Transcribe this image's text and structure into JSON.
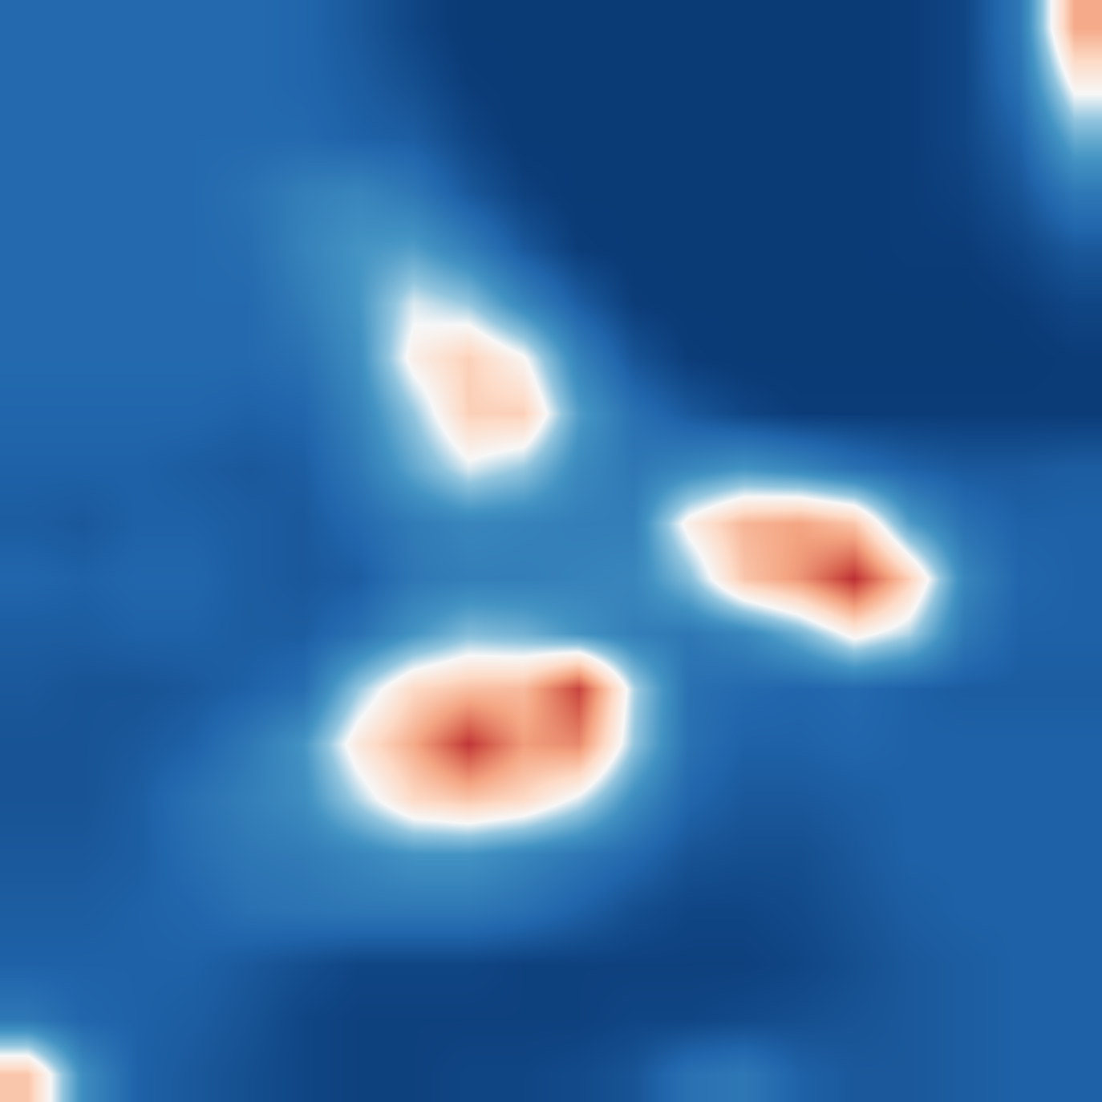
{
  "chart_data": {
    "type": "heatmap",
    "tick_labels": false,
    "zlim": [
      0,
      10
    ],
    "z": [
      [
        1.8,
        1.8,
        1.8,
        1.8,
        1.8,
        1.7,
        1.4,
        1.0,
        0.7,
        0.7,
        0.7,
        0.7,
        0.7,
        0.7,
        0.7,
        0.7,
        0.8,
        1.0,
        2.2,
        6.5
      ],
      [
        1.8,
        1.8,
        1.8,
        1.8,
        1.8,
        1.7,
        1.5,
        1.2,
        0.8,
        0.7,
        0.7,
        0.7,
        0.7,
        0.7,
        0.7,
        0.7,
        0.8,
        1.0,
        2.0,
        5.0
      ],
      [
        1.8,
        1.8,
        1.8,
        1.8,
        1.8,
        1.8,
        1.6,
        1.5,
        1.0,
        0.7,
        0.7,
        0.7,
        0.7,
        0.7,
        0.7,
        0.7,
        0.8,
        1.0,
        1.6,
        3.5
      ],
      [
        1.8,
        1.8,
        1.8,
        1.8,
        2.0,
        2.4,
        2.6,
        2.2,
        1.4,
        0.9,
        0.7,
        0.7,
        0.7,
        0.7,
        0.7,
        0.7,
        0.8,
        0.9,
        1.3,
        2.2
      ],
      [
        1.8,
        1.8,
        1.8,
        1.8,
        1.9,
        2.5,
        3.0,
        3.2,
        2.4,
        1.4,
        0.8,
        0.7,
        0.7,
        0.7,
        0.7,
        0.7,
        0.8,
        0.8,
        1.0,
        1.4
      ],
      [
        1.8,
        1.8,
        1.8,
        1.8,
        1.8,
        2.3,
        3.0,
        4.5,
        4.0,
        2.6,
        1.5,
        0.8,
        0.7,
        0.7,
        0.7,
        0.7,
        0.7,
        0.7,
        0.8,
        1.0
      ],
      [
        1.8,
        1.8,
        1.8,
        1.8,
        1.8,
        2.0,
        2.8,
        5.0,
        5.8,
        4.8,
        2.5,
        1.3,
        0.8,
        0.7,
        0.7,
        0.7,
        0.7,
        0.7,
        0.7,
        0.8
      ],
      [
        1.7,
        1.7,
        1.7,
        1.7,
        1.6,
        1.7,
        2.5,
        4.0,
        5.8,
        5.8,
        3.2,
        2.0,
        1.4,
        1.0,
        0.8,
        0.8,
        0.8,
        0.8,
        0.8,
        0.8
      ],
      [
        1.6,
        1.6,
        1.6,
        1.5,
        1.4,
        1.5,
        2.2,
        3.4,
        4.5,
        4.0,
        2.7,
        2.2,
        2.6,
        3.0,
        2.6,
        2.0,
        1.6,
        1.4,
        1.4,
        1.5
      ],
      [
        1.5,
        1.4,
        1.6,
        1.6,
        1.5,
        1.4,
        1.8,
        2.3,
        2.6,
        2.5,
        2.4,
        2.4,
        5.0,
        6.3,
        6.6,
        6.0,
        3.2,
        2.0,
        1.6,
        1.6
      ],
      [
        1.7,
        1.6,
        1.7,
        1.7,
        1.5,
        1.4,
        1.5,
        2.2,
        2.4,
        2.4,
        2.5,
        2.6,
        3.8,
        6.0,
        6.8,
        8.3,
        5.8,
        2.6,
        1.7,
        1.6
      ],
      [
        1.5,
        1.5,
        1.6,
        1.6,
        1.5,
        1.5,
        2.0,
        3.0,
        3.8,
        3.6,
        3.0,
        2.4,
        2.2,
        2.6,
        3.6,
        5.0,
        4.2,
        2.2,
        1.6,
        1.6
      ],
      [
        1.4,
        1.3,
        1.3,
        1.4,
        1.6,
        1.9,
        4.0,
        5.6,
        6.1,
        6.2,
        8.0,
        4.2,
        2.0,
        1.8,
        1.7,
        1.8,
        1.6,
        1.5,
        1.5,
        1.5
      ],
      [
        1.3,
        1.3,
        1.4,
        1.6,
        2.2,
        3.0,
        5.2,
        6.5,
        8.2,
        6.7,
        7.0,
        4.0,
        2.0,
        1.6,
        1.6,
        1.7,
        1.6,
        1.6,
        1.6,
        1.6
      ],
      [
        1.3,
        1.3,
        1.5,
        2.0,
        2.4,
        2.8,
        4.2,
        5.6,
        6.0,
        5.6,
        4.5,
        2.8,
        1.7,
        1.4,
        1.4,
        1.5,
        1.6,
        1.6,
        1.6,
        1.6
      ],
      [
        1.4,
        1.4,
        1.5,
        1.9,
        2.2,
        2.3,
        2.6,
        3.0,
        3.0,
        2.6,
        2.2,
        1.8,
        1.3,
        1.2,
        1.2,
        1.4,
        1.6,
        1.6,
        1.6,
        1.6
      ],
      [
        1.5,
        1.5,
        1.6,
        1.7,
        2.0,
        2.1,
        2.2,
        2.2,
        2.2,
        2.0,
        1.6,
        1.2,
        1.0,
        1.0,
        1.1,
        1.3,
        1.5,
        1.6,
        1.6,
        1.6
      ],
      [
        1.6,
        1.6,
        1.6,
        1.6,
        1.4,
        1.2,
        1.0,
        1.0,
        1.0,
        0.9,
        0.9,
        0.9,
        0.9,
        0.9,
        1.0,
        1.2,
        1.4,
        1.5,
        1.6,
        1.6
      ],
      [
        2.2,
        1.7,
        1.6,
        1.5,
        1.3,
        1.0,
        0.9,
        0.9,
        0.9,
        0.9,
        0.9,
        1.0,
        1.0,
        1.1,
        1.2,
        1.3,
        1.4,
        1.5,
        1.6,
        1.6
      ],
      [
        6.0,
        2.8,
        1.6,
        1.4,
        1.2,
        1.0,
        0.9,
        0.9,
        1.0,
        1.0,
        1.1,
        1.3,
        2.0,
        2.2,
        1.6,
        1.4,
        1.4,
        1.5,
        1.6,
        1.6
      ]
    ]
  }
}
